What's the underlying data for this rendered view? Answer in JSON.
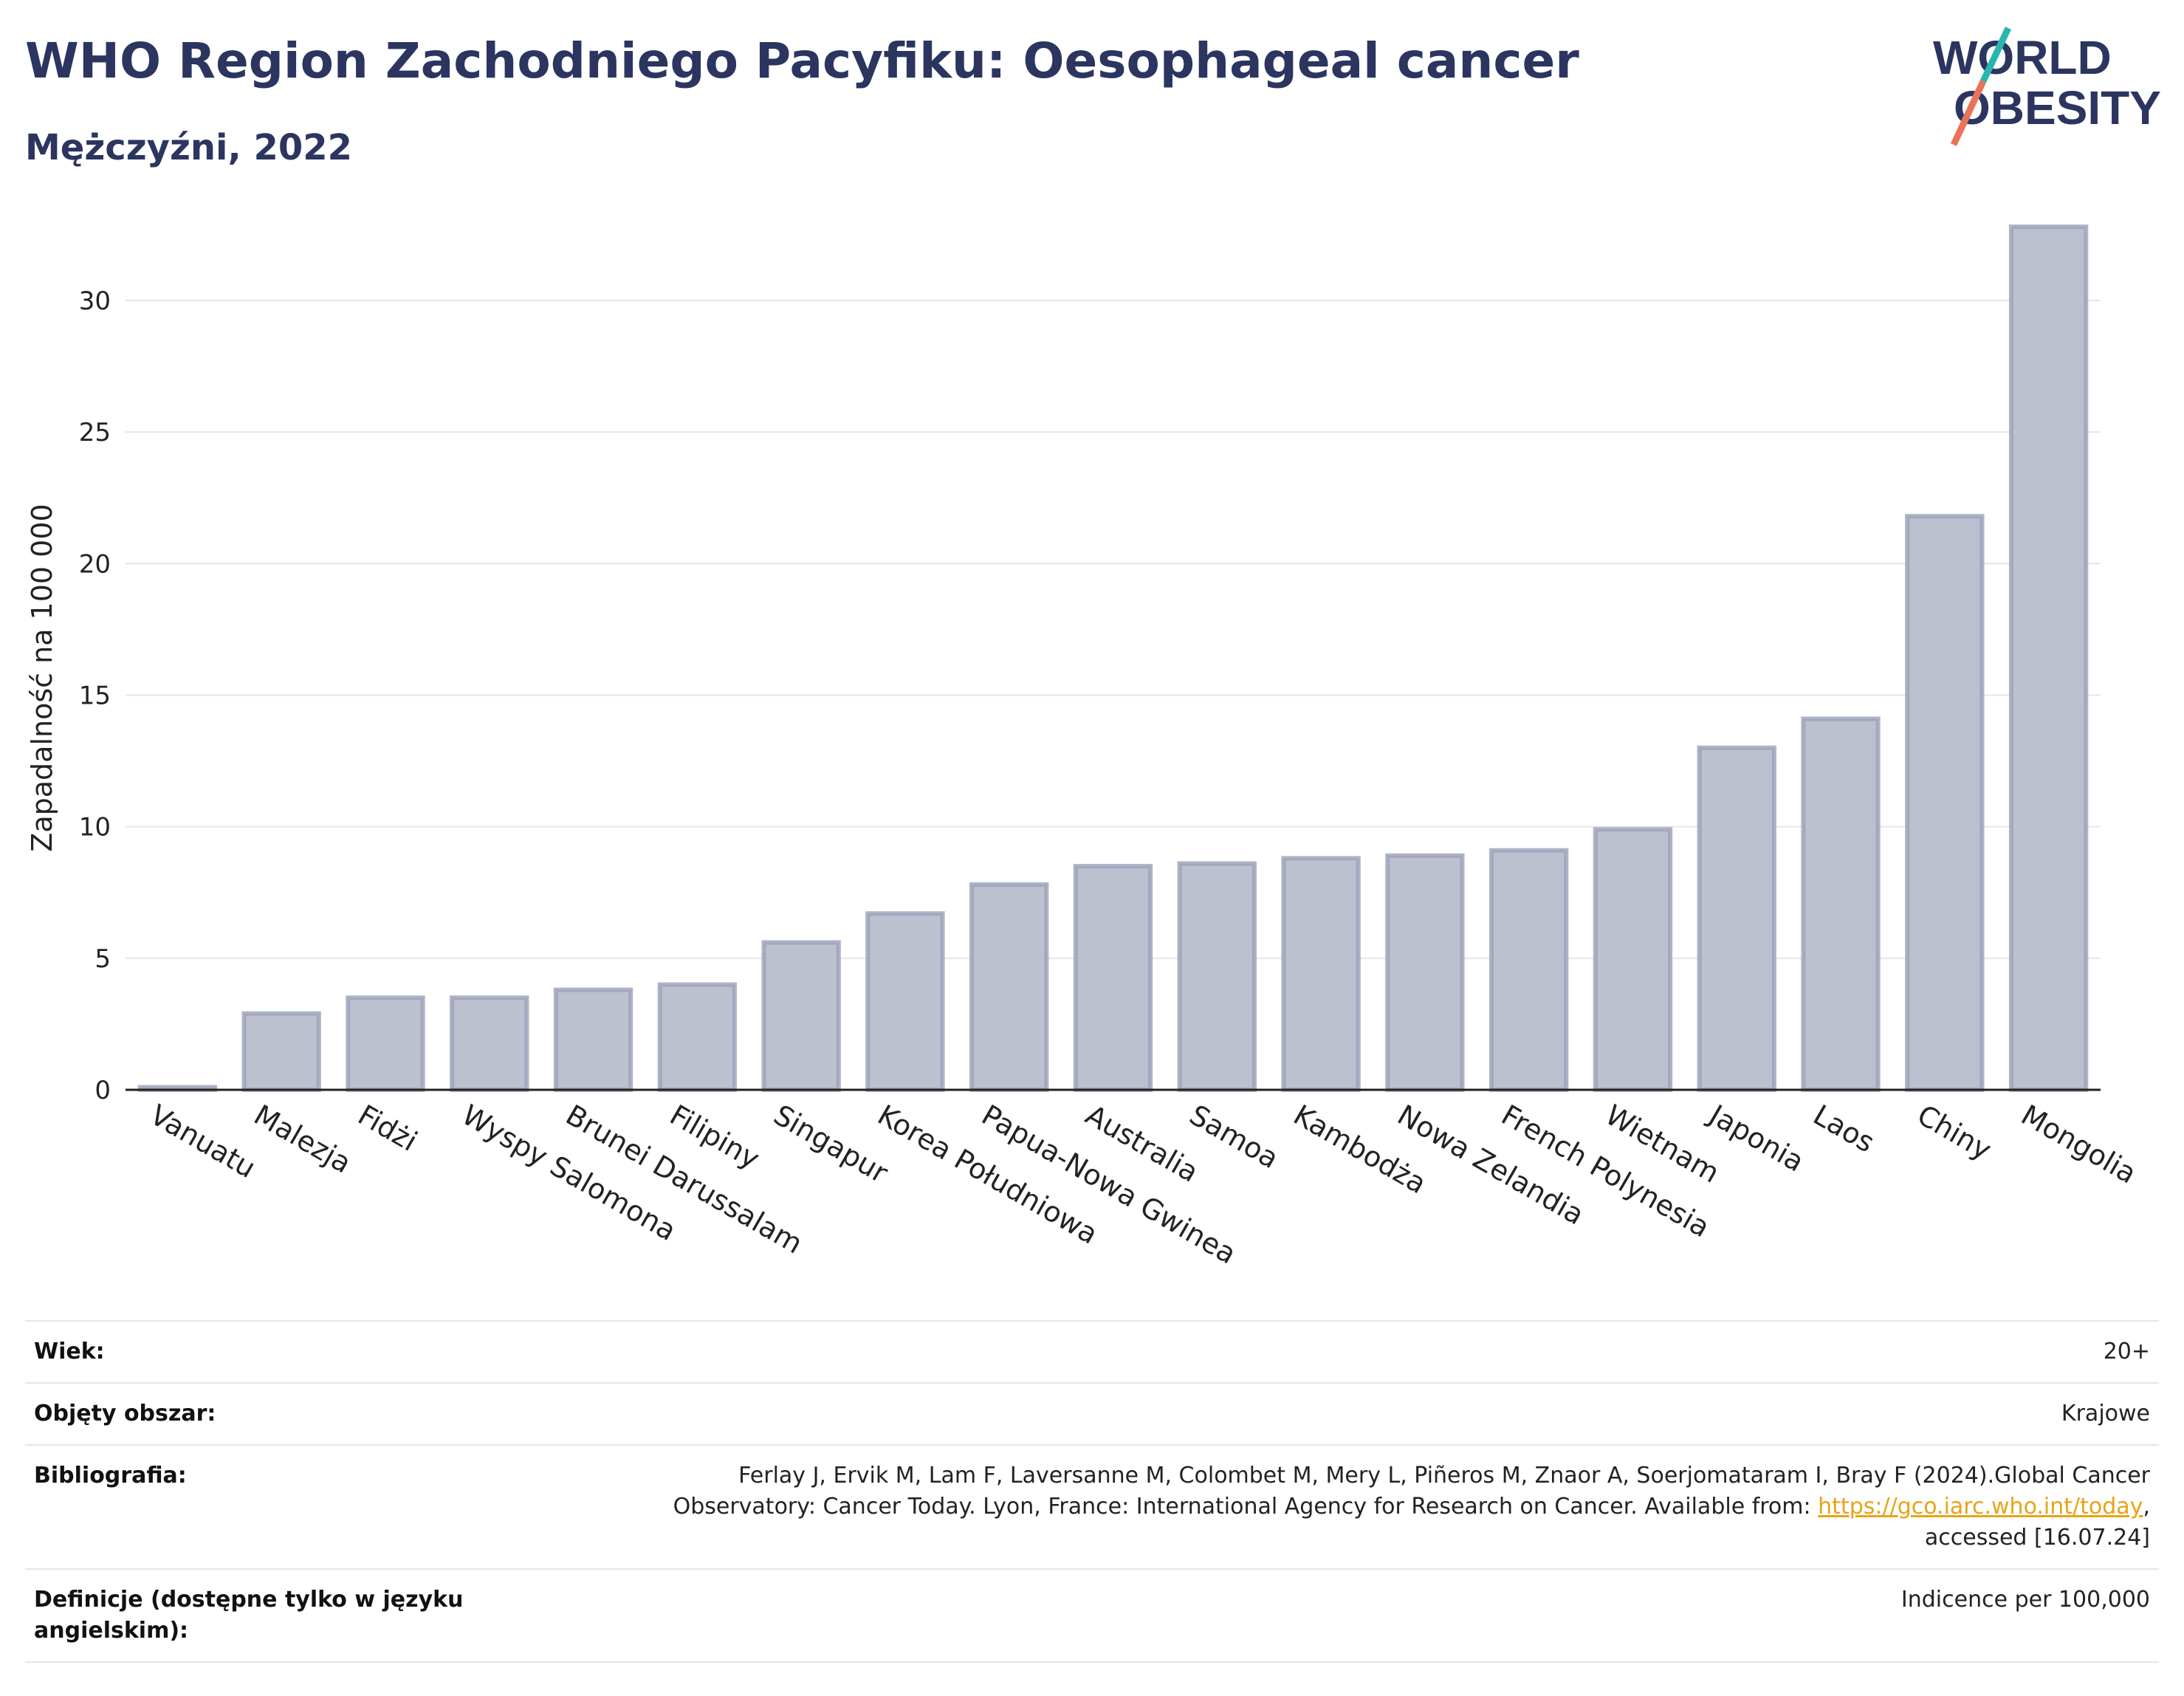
{
  "header": {
    "title": "WHO Region Zachodniego Pacyfiku: Oesophageal cancer",
    "subtitle": "Mężczyźni, 2022"
  },
  "logo": {
    "line1": "WORLD",
    "line2": "OBESITY",
    "colors": {
      "text": "#2b3560",
      "slash_top": "#2bb5b0",
      "slash_bottom": "#e8735a"
    }
  },
  "chart_data": {
    "type": "bar",
    "ylabel": "Zapadalność na 100 000",
    "xlabel": "",
    "ylim": [
      0,
      33
    ],
    "yticks": [
      0,
      5,
      10,
      15,
      20,
      25,
      30
    ],
    "grid": true,
    "categories": [
      "Vanuatu",
      "Malezja",
      "Fidżi",
      "Wyspy Salomona",
      "Brunei Darussalam",
      "Filipiny",
      "Singapur",
      "Korea Południowa",
      "Papua-Nowa Gwinea",
      "Australia",
      "Samoa",
      "Kambodża",
      "Nowa Zelandia",
      "French Polynesia",
      "Wietnam",
      "Japonia",
      "Laos",
      "Chiny",
      "Mongolia"
    ],
    "values": [
      0.1,
      2.9,
      3.5,
      3.5,
      3.8,
      4.0,
      5.6,
      6.7,
      7.8,
      8.5,
      8.6,
      8.8,
      8.9,
      9.1,
      9.9,
      13.0,
      14.1,
      21.8,
      32.8
    ],
    "colors": {
      "bar_fill": "#bcc0cf",
      "bar_stroke": "#9aa0b8",
      "axis": "#222222",
      "grid": "#e6e6ea"
    }
  },
  "meta": {
    "age_label": "Wiek:",
    "age_value": "20+",
    "coverage_label": "Objęty obszar:",
    "coverage_value": "Krajowe",
    "biblio_label": "Bibliografia:",
    "biblio_line1": "Ferlay J, Ervik M, Lam F, Laversanne M, Colombet M, Mery L, Piñeros M, Znaor A, Soerjomataram I, Bray F (2024).Global Cancer",
    "biblio_line2_pre": "Observatory: Cancer Today. Lyon, France: International Agency for Research on Cancer. Available from: ",
    "biblio_link": "https://gco.iarc.who.int/today",
    "biblio_line2_post": ",",
    "biblio_line3": "accessed [16.07.24]",
    "def_label_line1": "Definicje (dostępne tylko w języku",
    "def_label_line2": "angielskim):",
    "def_value": "Indicence per 100,000"
  }
}
